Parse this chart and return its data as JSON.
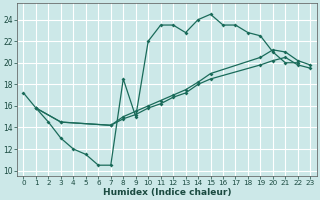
{
  "xlabel": "Humidex (Indice chaleur)",
  "xlim": [
    -0.5,
    23.5
  ],
  "ylim": [
    9.5,
    25.5
  ],
  "xticks": [
    0,
    1,
    2,
    3,
    4,
    5,
    6,
    7,
    8,
    9,
    10,
    11,
    12,
    13,
    14,
    15,
    16,
    17,
    18,
    19,
    20,
    21,
    22,
    23
  ],
  "yticks": [
    10,
    12,
    14,
    16,
    18,
    20,
    22,
    24
  ],
  "bg_color": "#cce8e8",
  "grid_color": "#ffffff",
  "line_color": "#1a6b5a",
  "line1_x": [
    0,
    1,
    2,
    3,
    4,
    5,
    6,
    7,
    8,
    9,
    10,
    11,
    12,
    13,
    14,
    15,
    16,
    17,
    18,
    19,
    20,
    21,
    22
  ],
  "line1_y": [
    17.2,
    15.8,
    14.5,
    13.0,
    12.0,
    11.5,
    10.5,
    10.5,
    18.5,
    15.0,
    22.0,
    23.5,
    23.5,
    22.8,
    24.0,
    24.5,
    23.5,
    23.5,
    22.8,
    22.5,
    21.0,
    20.0,
    20.0
  ],
  "line2_x": [
    1,
    3,
    7,
    8,
    9,
    10,
    11,
    12,
    13,
    14,
    15,
    19,
    20,
    21,
    22,
    23
  ],
  "line2_y": [
    15.8,
    14.5,
    14.2,
    15.0,
    15.5,
    16.0,
    16.5,
    17.0,
    17.5,
    18.2,
    19.0,
    20.5,
    21.2,
    21.0,
    20.2,
    19.8
  ],
  "line3_x": [
    1,
    3,
    7,
    8,
    9,
    10,
    11,
    12,
    13,
    14,
    15,
    19,
    20,
    21,
    22,
    23
  ],
  "line3_y": [
    15.8,
    14.5,
    14.2,
    14.8,
    15.2,
    15.8,
    16.2,
    16.8,
    17.2,
    18.0,
    18.5,
    19.8,
    20.2,
    20.5,
    19.8,
    19.5
  ]
}
